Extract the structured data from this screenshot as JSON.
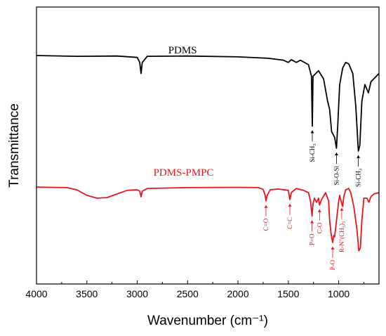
{
  "chart_data": {
    "type": "line",
    "title": "",
    "xlabel": "Wavenumber (cm⁻¹)",
    "ylabel": "Transmittance",
    "xlim": [
      4000,
      600
    ],
    "x_reversed": true,
    "xticks": [
      4000,
      3500,
      3000,
      2500,
      2000,
      1500,
      1000
    ],
    "y_ticks_shown": false,
    "grid": false,
    "series": [
      {
        "name": "PDMS",
        "color": "#000000",
        "points": [
          [
            4000,
            0.825
          ],
          [
            3600,
            0.822
          ],
          [
            3200,
            0.823
          ],
          [
            3000,
            0.818
          ],
          [
            2975,
            0.8
          ],
          [
            2962,
            0.76
          ],
          [
            2950,
            0.8
          ],
          [
            2900,
            0.822
          ],
          [
            2500,
            0.823
          ],
          [
            2000,
            0.82
          ],
          [
            1700,
            0.815
          ],
          [
            1550,
            0.808
          ],
          [
            1500,
            0.8
          ],
          [
            1470,
            0.81
          ],
          [
            1420,
            0.8
          ],
          [
            1380,
            0.808
          ],
          [
            1300,
            0.792
          ],
          [
            1270,
            0.75
          ],
          [
            1262,
            0.57
          ],
          [
            1255,
            0.75
          ],
          [
            1200,
            0.77
          ],
          [
            1150,
            0.74
          ],
          [
            1110,
            0.66
          ],
          [
            1090,
            0.63
          ],
          [
            1070,
            0.55
          ],
          [
            1040,
            0.53
          ],
          [
            1022,
            0.49
          ],
          [
            1010,
            0.57
          ],
          [
            990,
            0.72
          ],
          [
            960,
            0.78
          ],
          [
            930,
            0.8
          ],
          [
            900,
            0.795
          ],
          [
            860,
            0.76
          ],
          [
            830,
            0.64
          ],
          [
            805,
            0.48
          ],
          [
            790,
            0.5
          ],
          [
            770,
            0.66
          ],
          [
            740,
            0.72
          ],
          [
            705,
            0.69
          ],
          [
            680,
            0.73
          ],
          [
            600,
            0.76
          ]
        ]
      },
      {
        "name": "PDMS-PMPC",
        "color": "#e8141b",
        "points": [
          [
            4000,
            0.35
          ],
          [
            3700,
            0.348
          ],
          [
            3600,
            0.34
          ],
          [
            3500,
            0.32
          ],
          [
            3400,
            0.31
          ],
          [
            3300,
            0.312
          ],
          [
            3200,
            0.325
          ],
          [
            3100,
            0.338
          ],
          [
            3000,
            0.34
          ],
          [
            2975,
            0.335
          ],
          [
            2962,
            0.315
          ],
          [
            2950,
            0.335
          ],
          [
            2900,
            0.345
          ],
          [
            2500,
            0.348
          ],
          [
            2000,
            0.349
          ],
          [
            1800,
            0.348
          ],
          [
            1750,
            0.342
          ],
          [
            1730,
            0.32
          ],
          [
            1722,
            0.3
          ],
          [
            1712,
            0.318
          ],
          [
            1680,
            0.34
          ],
          [
            1600,
            0.343
          ],
          [
            1500,
            0.338
          ],
          [
            1485,
            0.305
          ],
          [
            1470,
            0.33
          ],
          [
            1420,
            0.345
          ],
          [
            1350,
            0.338
          ],
          [
            1300,
            0.33
          ],
          [
            1280,
            0.3
          ],
          [
            1265,
            0.245
          ],
          [
            1255,
            0.29
          ],
          [
            1240,
            0.31
          ],
          [
            1220,
            0.295
          ],
          [
            1200,
            0.31
          ],
          [
            1190,
            0.285
          ],
          [
            1170,
            0.305
          ],
          [
            1130,
            0.33
          ],
          [
            1100,
            0.3
          ],
          [
            1090,
            0.23
          ],
          [
            1075,
            0.18
          ],
          [
            1060,
            0.15
          ],
          [
            1050,
            0.175
          ],
          [
            1040,
            0.17
          ],
          [
            1020,
            0.235
          ],
          [
            1000,
            0.3
          ],
          [
            990,
            0.32
          ],
          [
            970,
            0.29
          ],
          [
            960,
            0.28
          ],
          [
            950,
            0.315
          ],
          [
            930,
            0.34
          ],
          [
            900,
            0.345
          ],
          [
            880,
            0.33
          ],
          [
            850,
            0.28
          ],
          [
            820,
            0.2
          ],
          [
            800,
            0.12
          ],
          [
            785,
            0.13
          ],
          [
            770,
            0.23
          ],
          [
            750,
            0.31
          ],
          [
            720,
            0.31
          ],
          [
            700,
            0.295
          ],
          [
            680,
            0.315
          ],
          [
            650,
            0.325
          ],
          [
            600,
            0.33
          ]
        ]
      }
    ],
    "series_labels": [
      {
        "text": "PDMS",
        "x": 2550,
        "color": "#000000"
      },
      {
        "text": "PDMS-PMPC",
        "x": 2540,
        "color": "#e8141b"
      }
    ],
    "annotations": [
      {
        "series": 0,
        "main": "Si-CH",
        "sub": "3",
        "sup": "",
        "x": 1262,
        "color": "#000000"
      },
      {
        "series": 0,
        "main": "Si-O-Si",
        "sub": "",
        "sup": "",
        "x": 1022,
        "color": "#000000"
      },
      {
        "series": 0,
        "main": "Si-CH",
        "sub": "3",
        "sup": "",
        "x": 805,
        "color": "#000000"
      },
      {
        "series": 1,
        "main": "C=O",
        "sub": "",
        "sup": "",
        "x": 1722,
        "color": "#e8141b"
      },
      {
        "series": 1,
        "main": "C=C",
        "sub": "",
        "sup": "",
        "x": 1485,
        "color": "#e8141b"
      },
      {
        "series": 1,
        "main": "P=O",
        "sub": "",
        "sup": "",
        "x": 1265,
        "color": "#e8141b"
      },
      {
        "series": 1,
        "main": "C-O",
        "sub": "",
        "sup": "",
        "x": 1190,
        "color": "#e8141b"
      },
      {
        "series": 1,
        "main": "P-O",
        "sub": "",
        "sup": "",
        "x": 1060,
        "color": "#e8141b"
      },
      {
        "series": 1,
        "main": "R-N",
        "sub": "",
        "sup": "+",
        "tail": "(CH",
        "tail_sub": "3",
        "tail_end": ")",
        "tail_sub2": "3",
        "x": 970,
        "color": "#e8141b"
      }
    ]
  }
}
